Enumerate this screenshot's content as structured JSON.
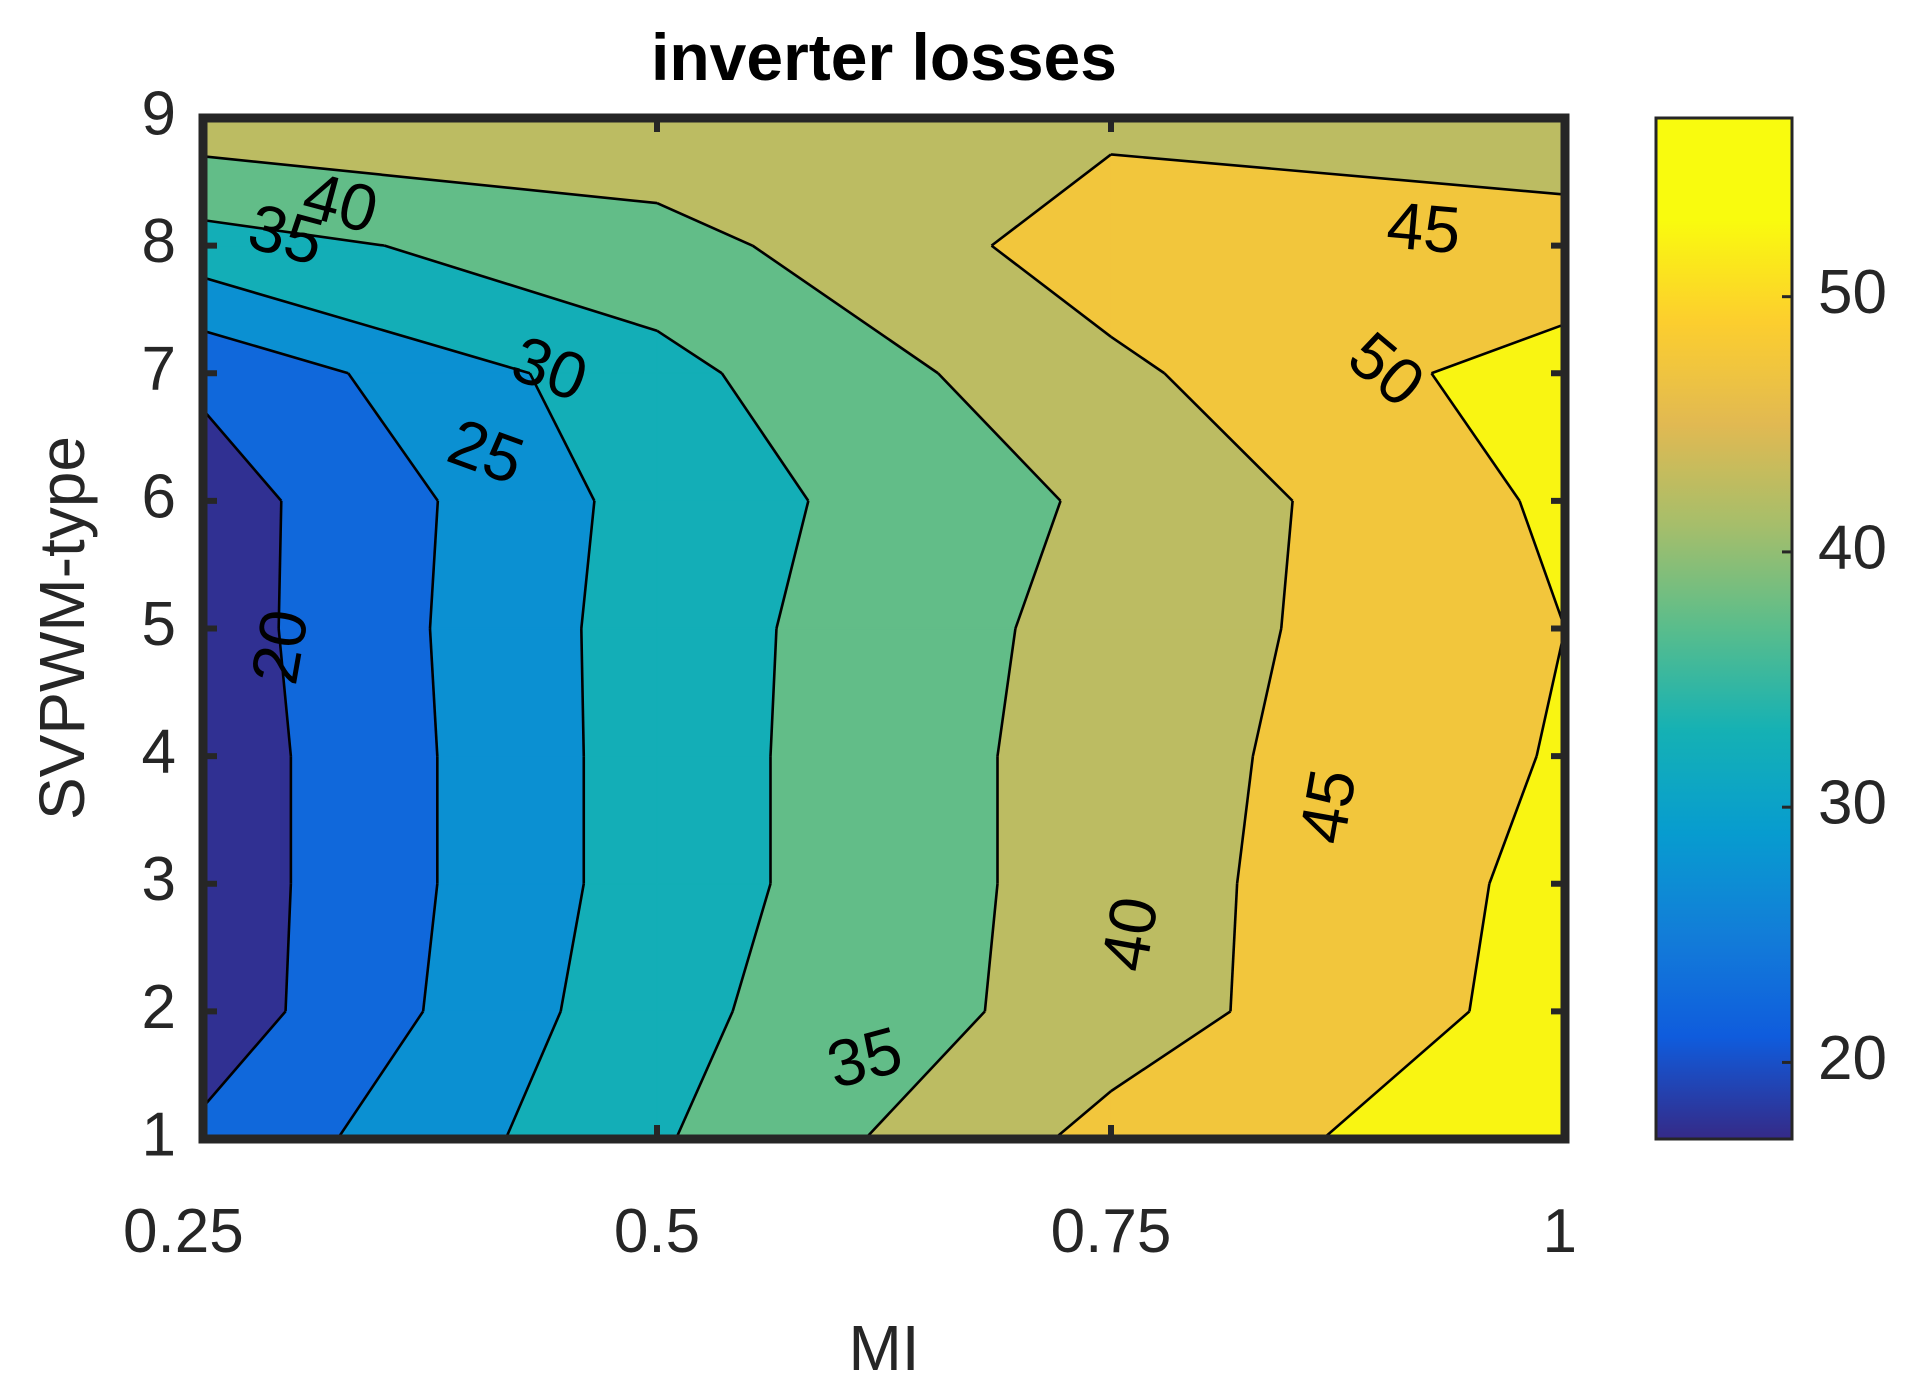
{
  "chart_data": {
    "type": "contour",
    "title": "inverter losses",
    "xlabel": "MI",
    "ylabel": "SVPWM-type",
    "x": [
      0.25,
      0.5,
      0.75,
      1
    ],
    "y": [
      1,
      2,
      3,
      4,
      5,
      6,
      7,
      8,
      9
    ],
    "xlim": [
      0.25,
      1
    ],
    "ylim": [
      1,
      9
    ],
    "x_ticks": [
      "0.25",
      "0.5",
      "0.75",
      "1"
    ],
    "y_ticks": [
      "1",
      "2",
      "3",
      "4",
      "5",
      "6",
      "7",
      "8",
      "9"
    ],
    "z": [
      [
        21,
        34.5,
        46.5,
        54
      ],
      [
        17,
        33.5,
        42.5,
        52
      ],
      [
        17,
        32.5,
        42.5,
        51.5
      ],
      [
        17,
        32.5,
        42.5,
        50.5
      ],
      [
        17.5,
        32.5,
        42,
        50
      ],
      [
        17.5,
        32,
        41,
        51
      ],
      [
        21,
        33.5,
        44,
        52.5
      ],
      [
        33,
        38,
        47.5,
        46
      ],
      [
        43,
        44,
        44,
        43.5
      ]
    ],
    "contour_levels": [
      15,
      20,
      25,
      30,
      35,
      40,
      45,
      50,
      55
    ],
    "contour_labels": [
      {
        "text": "20",
        "mi": 0.295,
        "type": 4.85,
        "angle": -80
      },
      {
        "text": "25",
        "mi": 0.405,
        "type": 6.35,
        "angle": 20
      },
      {
        "text": "30",
        "mi": 0.44,
        "type": 7.0,
        "angle": 20
      },
      {
        "text": "35",
        "mi": 0.295,
        "type": 8.05,
        "angle": 15
      },
      {
        "text": "40",
        "mi": 0.325,
        "type": 8.3,
        "angle": 15
      },
      {
        "text": "35",
        "mi": 0.615,
        "type": 1.6,
        "angle": -15
      },
      {
        "text": "40",
        "mi": 0.763,
        "type": 2.6,
        "angle": -80
      },
      {
        "text": "45",
        "mi": 0.872,
        "type": 3.6,
        "angle": -80
      },
      {
        "text": "45",
        "mi": 0.922,
        "type": 8.1,
        "angle": 5
      },
      {
        "text": "50",
        "mi": 0.9,
        "type": 7.0,
        "angle": 40
      }
    ],
    "colorbar": {
      "range": [
        17,
        57
      ],
      "ticks": [
        "20",
        "30",
        "40",
        "50"
      ],
      "tick_values": [
        20,
        30,
        40,
        50
      ],
      "colormap": "parula"
    },
    "grid": false,
    "legend": "none"
  }
}
